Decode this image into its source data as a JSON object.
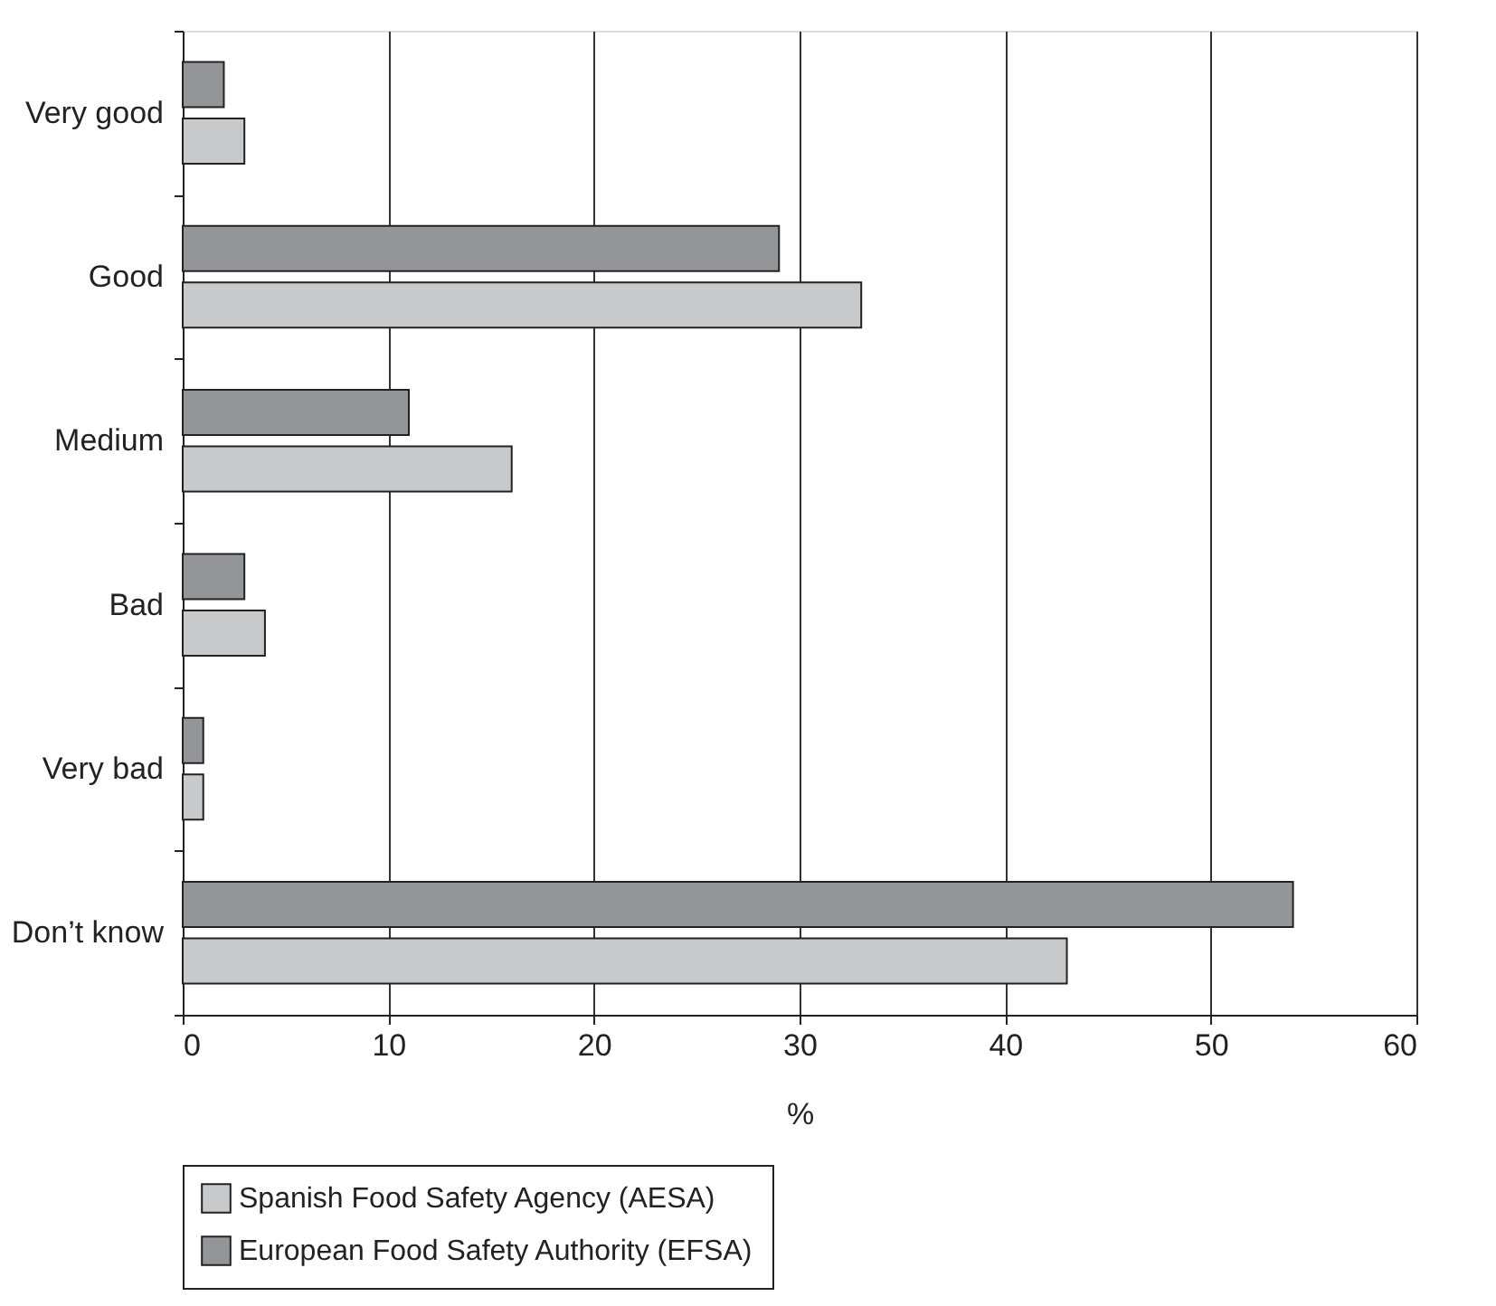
{
  "chart_data": {
    "type": "bar",
    "orientation": "horizontal",
    "xlabel": "%",
    "categories": [
      "Very good",
      "Good",
      "Medium",
      "Bad",
      "Very bad",
      "Don’t know"
    ],
    "series": [
      {
        "name": "Spanish Food Safety Agency (AESA)",
        "color": "#c8c9cb",
        "values": [
          3,
          33,
          16,
          4,
          1,
          43
        ]
      },
      {
        "name": "European Food Safety Authority (EFSA)",
        "color": "#939598",
        "values": [
          2,
          29,
          11,
          3,
          1,
          54
        ]
      }
    ],
    "xlim": [
      0,
      60
    ],
    "xticks": [
      0,
      10,
      20,
      30,
      40,
      50,
      60
    ],
    "grid": "x",
    "legend": "bottom"
  }
}
